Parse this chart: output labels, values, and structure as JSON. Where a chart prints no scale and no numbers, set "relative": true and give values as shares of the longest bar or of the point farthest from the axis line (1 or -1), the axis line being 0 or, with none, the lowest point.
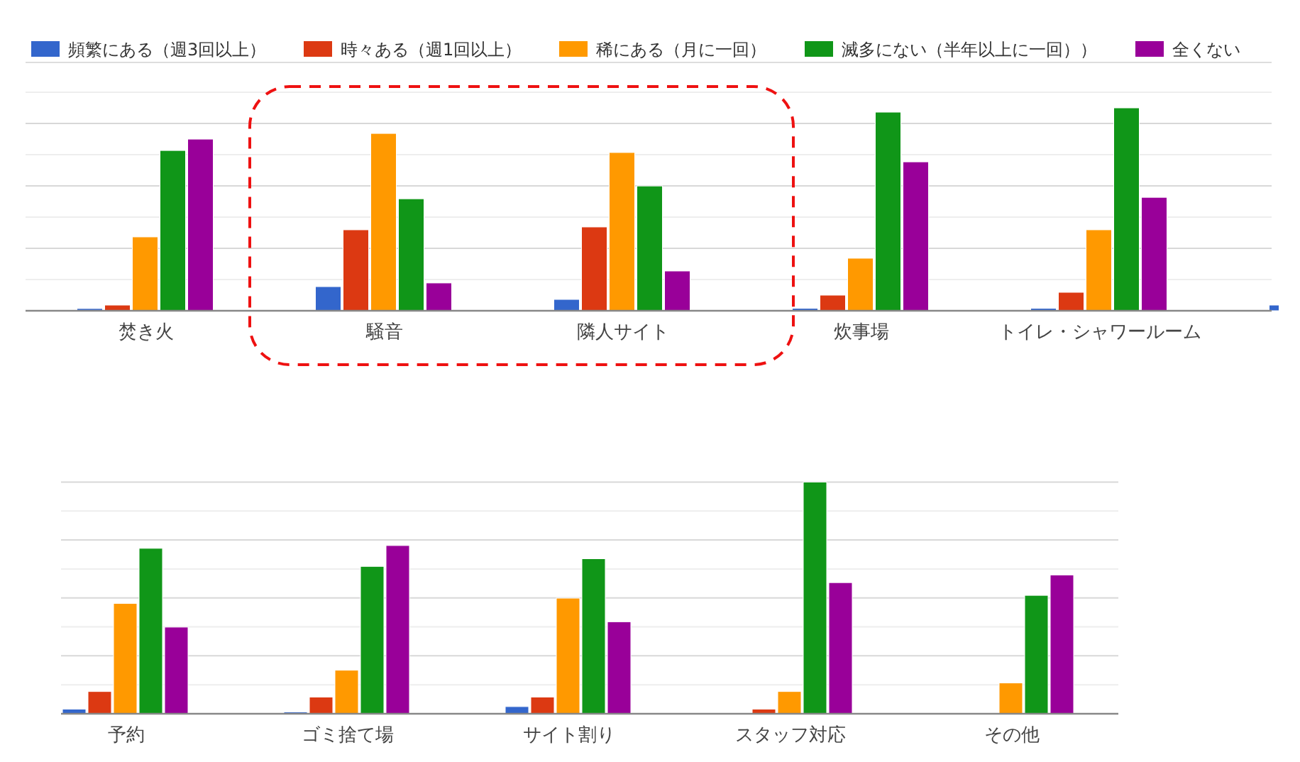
{
  "chart_data": [
    {
      "type": "bar",
      "relative": true,
      "grid": "y",
      "legend": "top",
      "categories": [
        "焚き火",
        "騒音",
        "隣人サイト",
        "炊事場",
        "トイレ・シャワールーム",
        null
      ],
      "series": [
        {
          "name": "頻繁にある（週3回以上）",
          "color": "#3366cc",
          "values": [
            0.011,
            0.119,
            0.056,
            0.012,
            0.012,
            0.028
          ]
        },
        {
          "name": "時々ある（週1回以上）",
          "color": "#dc3912",
          "values": [
            0.028,
            0.399,
            0.413,
            0.077,
            0.091,
            null
          ]
        },
        {
          "name": "稀にある（月に一回）",
          "color": "#ff9900",
          "values": [
            0.364,
            0.874,
            0.78,
            0.259,
            0.399,
            null
          ]
        },
        {
          "name": "滅多にない（半年以上に一回））",
          "color": "#109618",
          "values": [
            0.79,
            0.552,
            0.615,
            0.979,
            1,
            null
          ]
        },
        {
          "name": "全くない",
          "color": "#990099",
          "values": [
            0.846,
            0.137,
            0.196,
            0.734,
            0.559,
            null
          ]
        }
      ]
    },
    {
      "type": "bar",
      "relative": true,
      "grid": "y",
      "categories": [
        "予約",
        "ゴミ捨て場",
        "サイト割り",
        "スタッフ対応",
        "その他"
      ],
      "series": [
        {
          "color": "#3366cc",
          "values": [
            0.02,
            0.008,
            0.031,
            null,
            null
          ]
        },
        {
          "color": "#dc3912",
          "values": [
            0.096,
            0.072,
            0.072,
            0.02,
            null
          ]
        },
        {
          "color": "#ff9900",
          "values": [
            0.476,
            0.188,
            0.499,
            0.096,
            0.133
          ]
        },
        {
          "color": "#109618",
          "values": [
            0.714,
            0.636,
            0.669,
            1,
            0.511
          ]
        },
        {
          "color": "#990099",
          "values": [
            0.374,
            0.726,
            0.397,
            0.566,
            0.599
          ]
        }
      ]
    }
  ]
}
